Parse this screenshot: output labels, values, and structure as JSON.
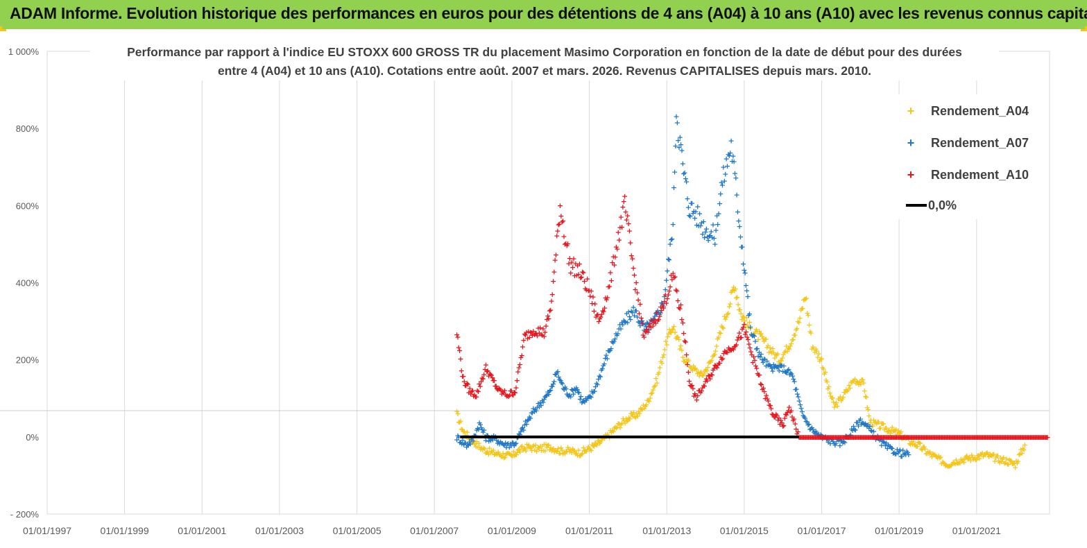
{
  "header": {
    "title": "ADAM Informe. Evolution historique des performances en euros pour des détentions de 4 ans (A04) à 10 ans (A10) avec les revenus connus capitalisés"
  },
  "chart_data": {
    "type": "scatter",
    "title_line1": "Performance par rapport à l'indice EU STOXX 600 GROSS TR  du placement Masimo Corporation en fonction de la date de début pour des durées",
    "title_line2": "entre 4 (A04) et 10 ans (A10). Cotations entre août. 2007 et mars. 2026. Revenus CAPITALISES depuis mars. 2010.",
    "ylim": [
      -200,
      1000
    ],
    "y_ticks": [
      -200,
      0,
      200,
      400,
      600,
      800,
      1000
    ],
    "y_tick_labels": [
      "- 200%",
      "0%",
      "200%",
      "400%",
      "600%",
      "800%",
      "1 000%"
    ],
    "xlim": [
      "1997-01-01",
      "2022-11-20"
    ],
    "x_ticks": [
      "1997-01-01",
      "1999-01-01",
      "2001-01-01",
      "2003-01-01",
      "2005-01-01",
      "2007-01-01",
      "2009-01-01",
      "2011-01-01",
      "2013-01-01",
      "2015-01-01",
      "2017-01-01",
      "2019-01-01",
      "2021-01-01"
    ],
    "x_tick_labels": [
      "01/01/1997",
      "01/01/1999",
      "01/01/2001",
      "01/01/2003",
      "01/01/2005",
      "01/01/2007",
      "01/01/2009",
      "01/01/2011",
      "01/01/2013",
      "01/01/2015",
      "01/01/2017",
      "01/01/2019",
      "01/01/2021"
    ],
    "grid": true,
    "legend_position": "top-right",
    "series": [
      {
        "name": "Rendement_A04",
        "color": "#f5c518",
        "marker": "+",
        "points": [
          [
            "2007-08-01",
            60
          ],
          [
            "2007-10-01",
            15
          ],
          [
            "2008-01-01",
            -10
          ],
          [
            "2008-04-01",
            -30
          ],
          [
            "2008-07-01",
            -40
          ],
          [
            "2008-10-01",
            -45
          ],
          [
            "2009-01-01",
            -50
          ],
          [
            "2009-03-01",
            -35
          ],
          [
            "2009-06-01",
            -25
          ],
          [
            "2009-09-01",
            -30
          ],
          [
            "2010-01-01",
            -25
          ],
          [
            "2010-04-01",
            -35
          ],
          [
            "2010-07-01",
            -35
          ],
          [
            "2010-10-01",
            -40
          ],
          [
            "2011-01-01",
            -30
          ],
          [
            "2011-04-01",
            -15
          ],
          [
            "2011-07-01",
            5
          ],
          [
            "2011-10-01",
            30
          ],
          [
            "2012-01-01",
            50
          ],
          [
            "2012-04-01",
            60
          ],
          [
            "2012-07-01",
            90
          ],
          [
            "2012-10-01",
            150
          ],
          [
            "2013-01-01",
            250
          ],
          [
            "2013-03-01",
            290
          ],
          [
            "2013-06-01",
            210
          ],
          [
            "2013-09-01",
            180
          ],
          [
            "2013-12-01",
            160
          ],
          [
            "2014-03-01",
            200
          ],
          [
            "2014-06-01",
            280
          ],
          [
            "2014-09-01",
            360
          ],
          [
            "2014-10-01",
            400
          ],
          [
            "2014-12-01",
            320
          ],
          [
            "2015-03-01",
            280
          ],
          [
            "2015-06-01",
            260
          ],
          [
            "2015-09-01",
            230
          ],
          [
            "2015-12-01",
            200
          ],
          [
            "2016-03-01",
            240
          ],
          [
            "2016-06-01",
            300
          ],
          [
            "2016-08-01",
            370
          ],
          [
            "2016-10-01",
            240
          ],
          [
            "2017-01-01",
            200
          ],
          [
            "2017-03-01",
            130
          ],
          [
            "2017-05-01",
            80
          ],
          [
            "2017-08-01",
            110
          ],
          [
            "2017-11-01",
            150
          ],
          [
            "2018-02-01",
            140
          ],
          [
            "2018-04-01",
            40
          ],
          [
            "2018-07-01",
            30
          ],
          [
            "2018-10-01",
            20
          ],
          [
            "2019-01-01",
            10
          ],
          [
            "2019-04-01",
            -10
          ],
          [
            "2019-07-01",
            -20
          ],
          [
            "2019-10-01",
            -40
          ],
          [
            "2020-01-01",
            -55
          ],
          [
            "2020-04-01",
            -70
          ],
          [
            "2020-07-01",
            -60
          ],
          [
            "2020-10-01",
            -55
          ],
          [
            "2021-01-01",
            -50
          ],
          [
            "2021-04-01",
            -45
          ],
          [
            "2021-07-01",
            -55
          ],
          [
            "2021-10-01",
            -60
          ],
          [
            "2022-01-01",
            -70
          ],
          [
            "2022-04-01",
            -20
          ]
        ]
      },
      {
        "name": "Rendement_A07",
        "color": "#1f77c8",
        "marker": "+",
        "points": [
          [
            "2007-08-01",
            0
          ],
          [
            "2007-11-01",
            -20
          ],
          [
            "2008-01-01",
            -5
          ],
          [
            "2008-03-01",
            35
          ],
          [
            "2008-05-01",
            0
          ],
          [
            "2008-08-01",
            -5
          ],
          [
            "2008-11-01",
            -20
          ],
          [
            "2009-02-01",
            -15
          ],
          [
            "2009-05-01",
            30
          ],
          [
            "2009-08-01",
            70
          ],
          [
            "2009-11-01",
            100
          ],
          [
            "2010-01-01",
            120
          ],
          [
            "2010-03-01",
            170
          ],
          [
            "2010-05-01",
            130
          ],
          [
            "2010-07-01",
            110
          ],
          [
            "2010-09-01",
            130
          ],
          [
            "2010-11-01",
            90
          ],
          [
            "2011-01-01",
            100
          ],
          [
            "2011-03-01",
            130
          ],
          [
            "2011-06-01",
            200
          ],
          [
            "2011-09-01",
            260
          ],
          [
            "2011-12-01",
            300
          ],
          [
            "2012-03-01",
            330
          ],
          [
            "2012-06-01",
            280
          ],
          [
            "2012-09-01",
            300
          ],
          [
            "2012-12-01",
            350
          ],
          [
            "2013-03-01",
            550
          ],
          [
            "2013-04-01",
            850
          ],
          [
            "2013-06-01",
            700
          ],
          [
            "2013-08-01",
            600
          ],
          [
            "2013-10-01",
            580
          ],
          [
            "2014-01-01",
            540
          ],
          [
            "2014-04-01",
            520
          ],
          [
            "2014-06-01",
            650
          ],
          [
            "2014-09-01",
            760
          ],
          [
            "2014-11-01",
            600
          ],
          [
            "2015-01-01",
            450
          ],
          [
            "2015-03-01",
            280
          ],
          [
            "2015-06-01",
            210
          ],
          [
            "2015-09-01",
            180
          ],
          [
            "2016-01-01",
            180
          ],
          [
            "2016-04-01",
            160
          ],
          [
            "2016-07-01",
            60
          ],
          [
            "2016-10-01",
            20
          ],
          [
            "2017-01-01",
            0
          ],
          [
            "2017-04-01",
            -10
          ],
          [
            "2017-07-01",
            -15
          ],
          [
            "2017-10-01",
            10
          ],
          [
            "2018-01-01",
            45
          ],
          [
            "2018-04-01",
            20
          ],
          [
            "2018-07-01",
            -10
          ],
          [
            "2018-10-01",
            -30
          ],
          [
            "2019-01-01",
            -40
          ],
          [
            "2019-04-01",
            -45
          ]
        ]
      },
      {
        "name": "Rendement_A10",
        "color": "#e8141c",
        "marker": "+",
        "points": [
          [
            "2007-08-01",
            270
          ],
          [
            "2007-10-01",
            150
          ],
          [
            "2007-12-01",
            120
          ],
          [
            "2008-02-01",
            110
          ],
          [
            "2008-05-01",
            180
          ],
          [
            "2008-07-01",
            150
          ],
          [
            "2008-09-01",
            120
          ],
          [
            "2008-12-01",
            110
          ],
          [
            "2009-02-01",
            120
          ],
          [
            "2009-05-01",
            260
          ],
          [
            "2009-08-01",
            280
          ],
          [
            "2009-11-01",
            270
          ],
          [
            "2010-01-01",
            330
          ],
          [
            "2010-03-01",
            500
          ],
          [
            "2010-04-01",
            600
          ],
          [
            "2010-07-01",
            450
          ],
          [
            "2010-10-01",
            430
          ],
          [
            "2011-01-01",
            380
          ],
          [
            "2011-04-01",
            300
          ],
          [
            "2011-07-01",
            380
          ],
          [
            "2011-10-01",
            520
          ],
          [
            "2011-12-01",
            600
          ],
          [
            "2012-03-01",
            420
          ],
          [
            "2012-06-01",
            260
          ],
          [
            "2012-09-01",
            300
          ],
          [
            "2012-12-01",
            340
          ],
          [
            "2013-03-01",
            420
          ],
          [
            "2013-06-01",
            300
          ],
          [
            "2013-08-01",
            150
          ],
          [
            "2013-10-01",
            100
          ],
          [
            "2014-01-01",
            140
          ],
          [
            "2014-04-01",
            180
          ],
          [
            "2014-07-01",
            220
          ],
          [
            "2014-10-01",
            240
          ],
          [
            "2015-01-01",
            280
          ],
          [
            "2015-04-01",
            200
          ],
          [
            "2015-07-01",
            120
          ],
          [
            "2015-10-01",
            60
          ],
          [
            "2016-01-01",
            30
          ],
          [
            "2016-03-01",
            80
          ],
          [
            "2016-06-01",
            0
          ],
          [
            "2018-01-01",
            0
          ],
          [
            "2020-01-01",
            0
          ],
          [
            "2022-11-01",
            0
          ]
        ]
      },
      {
        "name": "0,0%",
        "color": "#000000",
        "marker": "line",
        "points": [
          [
            "2007-09-01",
            0
          ],
          [
            "2016-06-01",
            0
          ]
        ]
      }
    ]
  }
}
